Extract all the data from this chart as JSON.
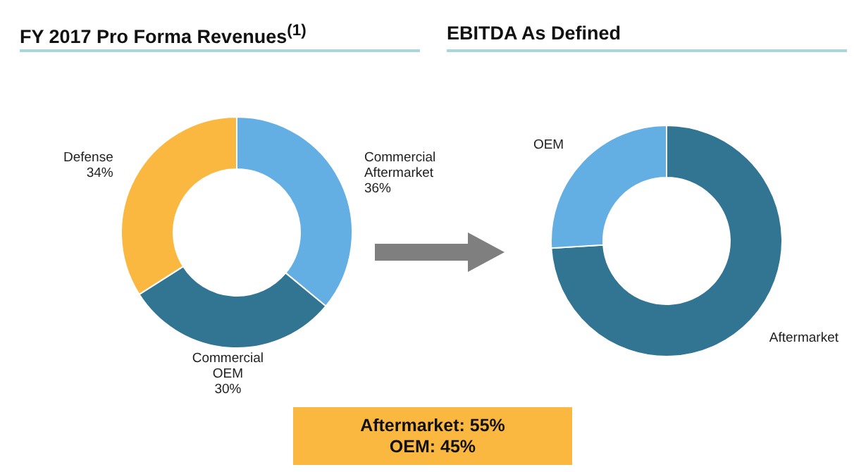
{
  "chart_data": [
    {
      "type": "donut",
      "title": "FY 2017 Pro Forma Revenues$^{(1)}$",
      "categories": [
        "Commercial Aftermarket",
        "Commercial OEM",
        "Defense"
      ],
      "values": [
        36,
        30,
        34
      ],
      "colors": [
        "#63aee3",
        "#327593",
        "#fbb840"
      ],
      "value_labels": [
        "36%",
        "30%",
        "34%"
      ]
    },
    {
      "type": "donut",
      "title": "EBITDA As Defined",
      "categories": [
        "Aftermarket",
        "OEM"
      ],
      "values": [
        74,
        26
      ],
      "colors": [
        "#327593",
        "#63aee3"
      ],
      "annotations": [
        "Aftermarket: 55%",
        "OEM: 45%"
      ]
    }
  ]
}
